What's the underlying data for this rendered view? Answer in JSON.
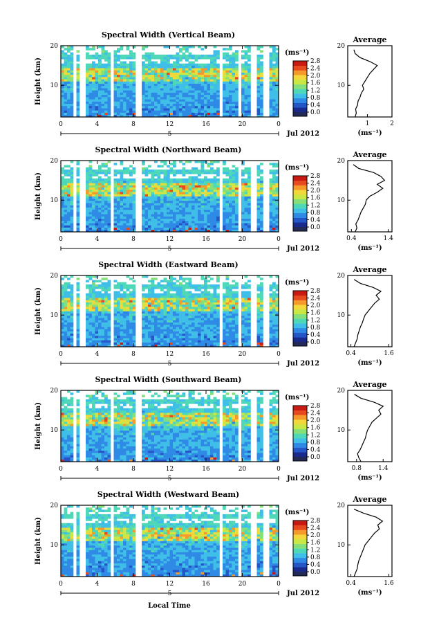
{
  "figure": {
    "shared_x_label": "Local Time",
    "date_label": "Jul 2012",
    "day_marker": "5",
    "colorbar_unit": "(ms⁻¹)",
    "colorbar_ticks": [
      "2.8",
      "2.4",
      "2.0",
      "1.6",
      "1.2",
      "0.8",
      "0.4",
      "0.0"
    ],
    "colorbar_colors": [
      "#1a2a8c",
      "#2456c8",
      "#2f8ae6",
      "#3fbfe8",
      "#4fd8b8",
      "#86e07a",
      "#c9e845",
      "#f2d83a",
      "#f59a2a",
      "#e84a1f",
      "#c81a12"
    ],
    "average_title": "Average",
    "average_x_label": "(ms⁻¹)"
  },
  "chart_data": [
    {
      "type": "heatmap",
      "title": "Spectral Width (Vertical Beam)",
      "ylabel": "Height (km)",
      "y_ticks": [
        "20",
        "10"
      ],
      "ylim": [
        2,
        20
      ],
      "xlim": [
        0,
        24
      ],
      "x_ticks": [
        "0",
        "4",
        "8",
        "12",
        "16",
        "20",
        "0"
      ],
      "colorbar_range": [
        0.0,
        2.8
      ],
      "gaps_hours": [
        1.6,
        2.4,
        5.6,
        8.6,
        17.7,
        19.6,
        21.3,
        22.6
      ],
      "profile": {
        "title": "Average",
        "xlim": [
          0.2,
          2.0
        ],
        "x_ticks": [
          "1",
          "2"
        ],
        "y_ticks": [
          "20",
          "10"
        ],
        "heights": [
          2,
          3,
          4,
          5,
          6,
          7,
          8,
          9,
          10,
          11,
          12,
          13,
          14,
          15,
          16,
          17,
          18,
          19
        ],
        "values": [
          0.5,
          0.55,
          0.52,
          0.6,
          0.62,
          0.7,
          0.75,
          0.85,
          0.8,
          0.9,
          1.0,
          1.1,
          1.25,
          1.4,
          1.1,
          0.7,
          0.5,
          0.45
        ]
      }
    },
    {
      "type": "heatmap",
      "title": "Spectral Width (Northward Beam)",
      "ylabel": "Height (km)",
      "y_ticks": [
        "20",
        "10"
      ],
      "ylim": [
        2,
        20
      ],
      "xlim": [
        0,
        24
      ],
      "x_ticks": [
        "0",
        "4",
        "8",
        "12",
        "16",
        "20",
        "0"
      ],
      "colorbar_range": [
        0.0,
        2.8
      ],
      "gaps_hours": [
        1.6,
        2.4,
        5.6,
        8.6,
        17.7,
        19.6,
        21.3,
        22.6
      ],
      "profile": {
        "title": "Average",
        "xlim": [
          0.3,
          1.5
        ],
        "x_ticks": [
          "0.4",
          "1.4"
        ],
        "y_ticks": [
          "20",
          "10"
        ],
        "heights": [
          2,
          3,
          4,
          5,
          6,
          7,
          8,
          9,
          10,
          11,
          12,
          13,
          14,
          15,
          16,
          17,
          18,
          19
        ],
        "values": [
          0.5,
          0.55,
          0.52,
          0.58,
          0.62,
          0.66,
          0.72,
          0.78,
          0.8,
          0.9,
          1.1,
          1.25,
          1.1,
          1.3,
          1.2,
          1.0,
          0.6,
          0.45
        ]
      }
    },
    {
      "type": "heatmap",
      "title": "Spectral Width (Eastward Beam)",
      "ylabel": "Height (km)",
      "y_ticks": [
        "20",
        "10"
      ],
      "ylim": [
        2,
        20
      ],
      "xlim": [
        0,
        24
      ],
      "x_ticks": [
        "0",
        "4",
        "8",
        "12",
        "16",
        "20",
        "0"
      ],
      "colorbar_range": [
        0.0,
        2.8
      ],
      "gaps_hours": [
        1.6,
        2.4,
        5.6,
        8.6,
        17.7,
        19.6,
        21.3,
        22.6
      ],
      "profile": {
        "title": "Average",
        "xlim": [
          0.3,
          1.7
        ],
        "x_ticks": [
          "0.4",
          "1.6"
        ],
        "y_ticks": [
          "20",
          "10"
        ],
        "heights": [
          2,
          3,
          4,
          5,
          6,
          7,
          8,
          9,
          10,
          11,
          12,
          13,
          14,
          15,
          16,
          17,
          18,
          19
        ],
        "values": [
          0.5,
          0.55,
          0.6,
          0.62,
          0.66,
          0.7,
          0.76,
          0.8,
          0.85,
          0.95,
          1.05,
          1.15,
          1.3,
          1.2,
          1.35,
          1.1,
          0.7,
          0.5
        ]
      }
    },
    {
      "type": "heatmap",
      "title": "Spectral Width (Southward Beam)",
      "ylabel": "Height (km)",
      "y_ticks": [
        "20",
        "10"
      ],
      "ylim": [
        2,
        20
      ],
      "xlim": [
        0,
        24
      ],
      "x_ticks": [
        "0",
        "4",
        "8",
        "12",
        "16",
        "20",
        "0"
      ],
      "colorbar_range": [
        0.0,
        2.8
      ],
      "gaps_hours": [
        1.6,
        2.4,
        5.6,
        8.6,
        17.7,
        19.6,
        21.3,
        22.6
      ],
      "profile": {
        "title": "Average",
        "xlim": [
          0.6,
          1.6
        ],
        "x_ticks": [
          "0.8",
          "1.4"
        ],
        "y_ticks": [
          "20",
          "10"
        ],
        "heights": [
          2,
          3,
          4,
          5,
          6,
          7,
          8,
          9,
          10,
          11,
          12,
          13,
          14,
          15,
          16,
          17,
          18,
          19
        ],
        "values": [
          0.9,
          0.85,
          0.82,
          0.88,
          0.92,
          0.96,
          1.0,
          1.02,
          1.05,
          1.1,
          1.15,
          1.25,
          1.35,
          1.3,
          1.4,
          1.2,
          0.9,
          0.75
        ]
      }
    },
    {
      "type": "heatmap",
      "title": "Spectral Width (Westward Beam)",
      "ylabel": "Height (km)",
      "y_ticks": [
        "20",
        "10"
      ],
      "ylim": [
        2,
        20
      ],
      "xlim": [
        0,
        24
      ],
      "x_ticks": [
        "0",
        "4",
        "8",
        "12",
        "16",
        "20",
        "0"
      ],
      "colorbar_range": [
        0.0,
        2.8
      ],
      "gaps_hours": [
        1.6,
        2.4,
        5.6,
        8.6,
        17.7,
        19.6,
        21.3,
        22.6
      ],
      "profile": {
        "title": "Average",
        "xlim": [
          0.3,
          1.7
        ],
        "x_ticks": [
          "0.4",
          "1.6"
        ],
        "y_ticks": [
          "20",
          "10"
        ],
        "heights": [
          2,
          3,
          4,
          5,
          6,
          7,
          8,
          9,
          10,
          11,
          12,
          13,
          14,
          15,
          16,
          17,
          18,
          19
        ],
        "values": [
          0.5,
          0.55,
          0.6,
          0.62,
          0.65,
          0.7,
          0.75,
          0.8,
          0.85,
          0.95,
          1.05,
          1.15,
          1.3,
          1.25,
          1.4,
          1.2,
          0.8,
          0.5
        ]
      }
    }
  ]
}
